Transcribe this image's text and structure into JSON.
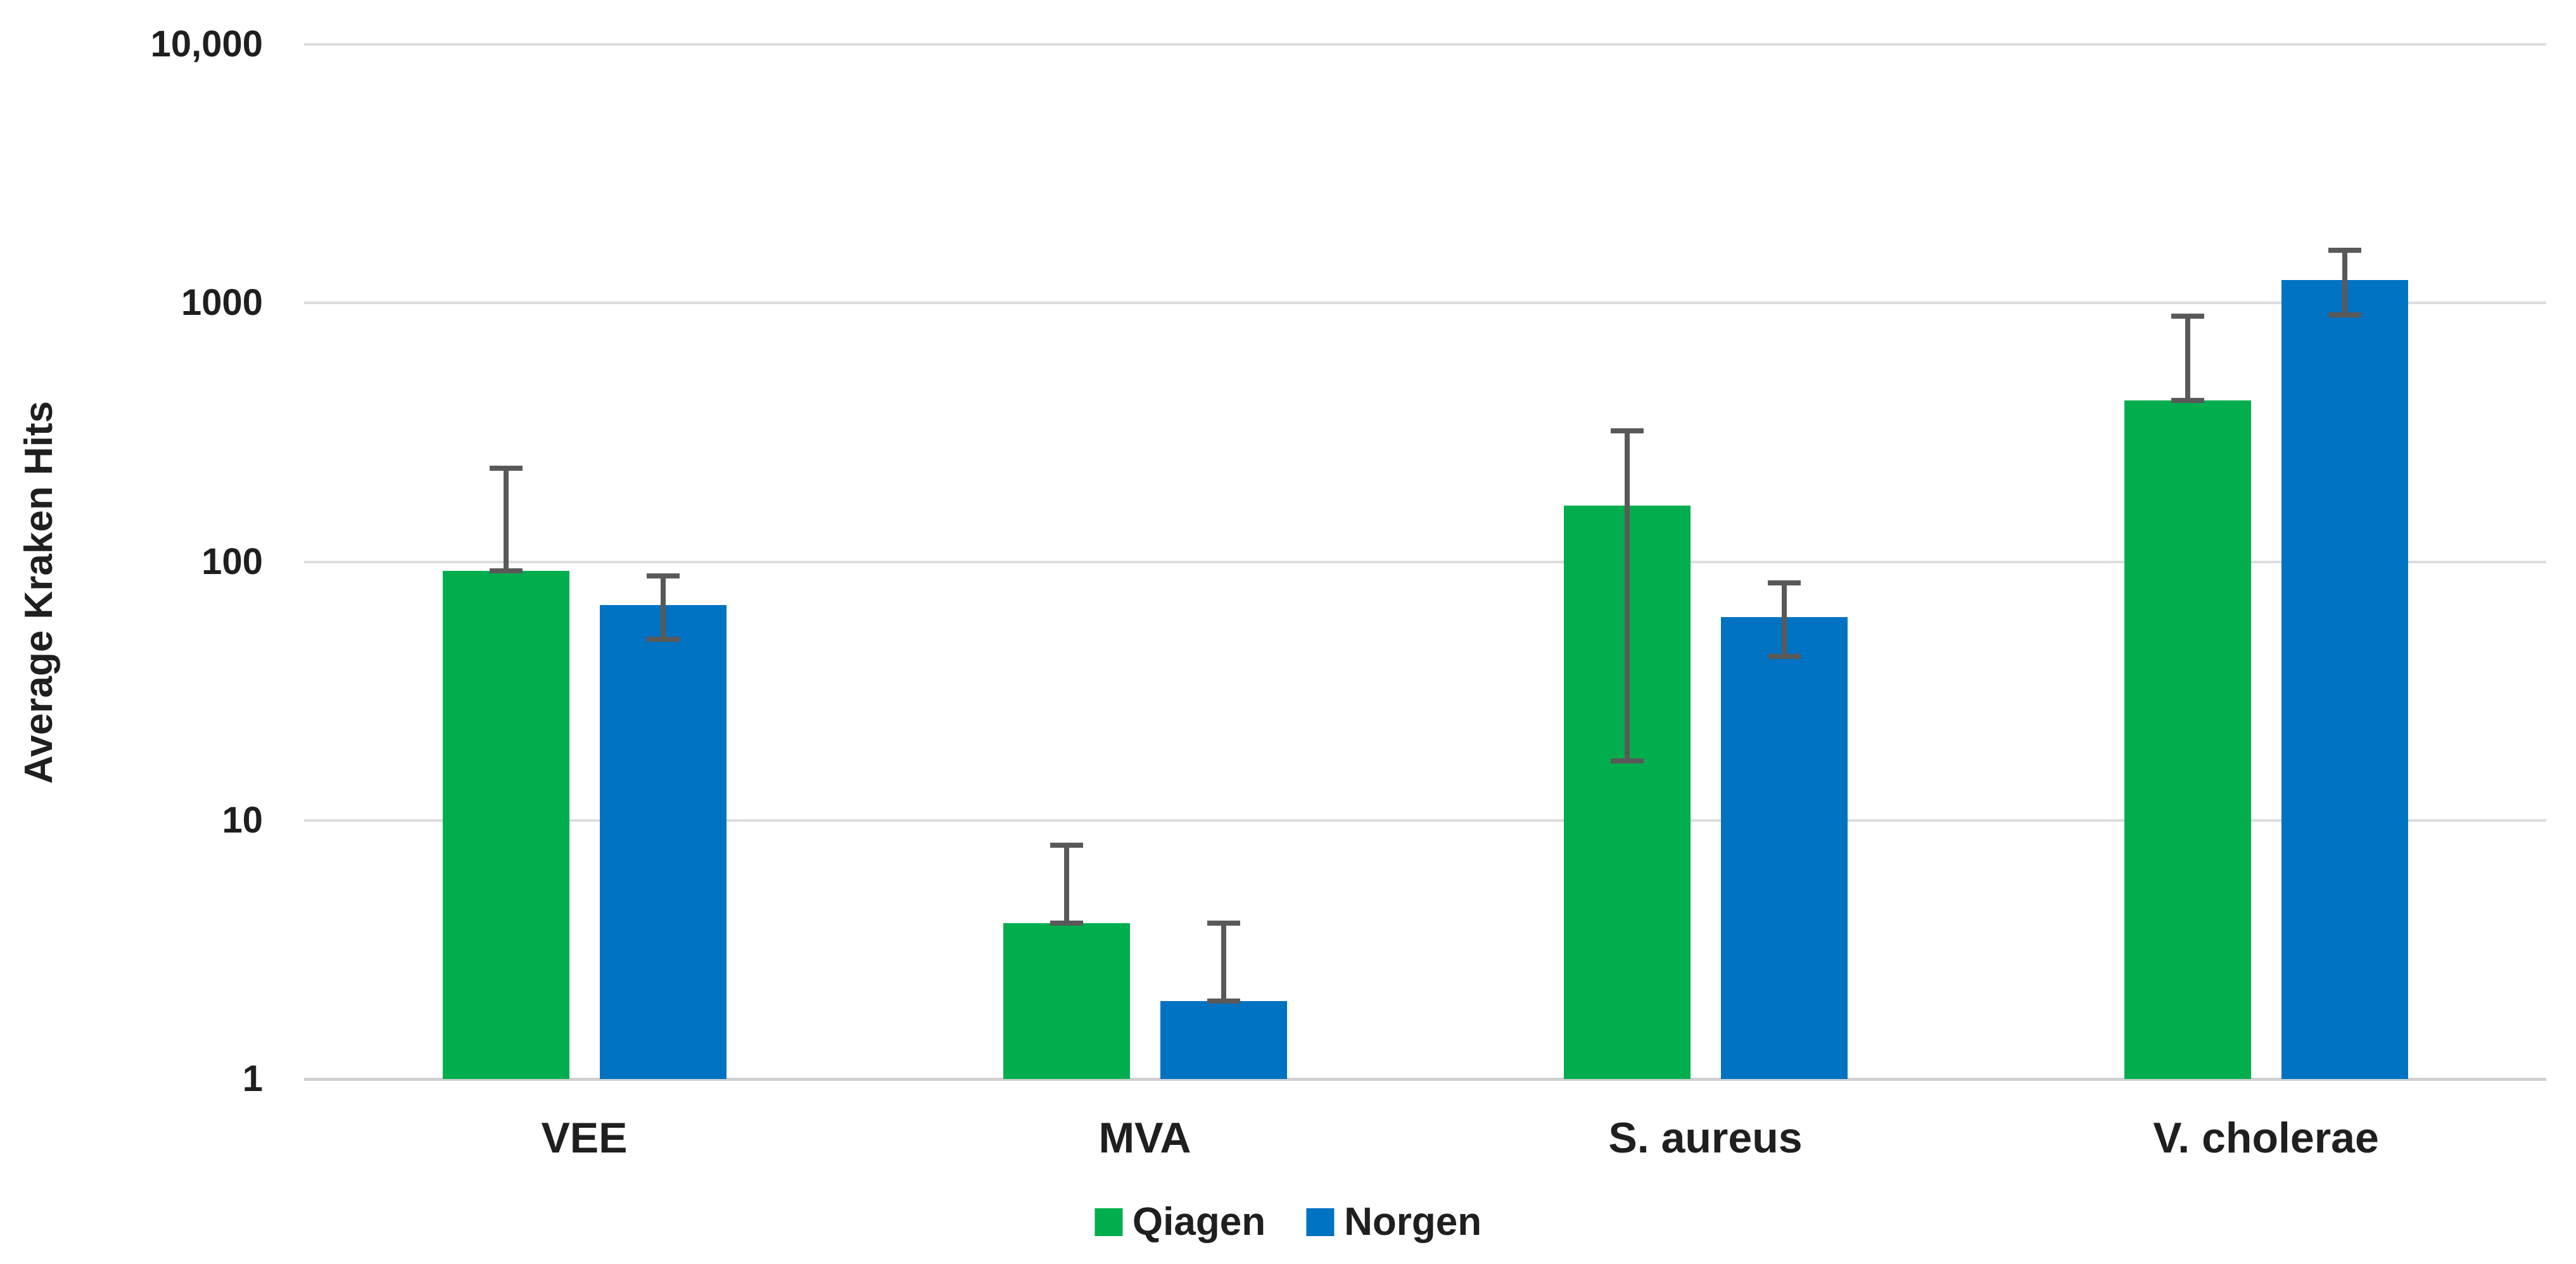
{
  "chart_data": {
    "type": "bar",
    "scale": "log10",
    "title": "",
    "xlabel": "",
    "ylabel": "Average Kraken Hits",
    "ylim": [
      1,
      10000
    ],
    "grid": true,
    "legend_position": "bottom-center",
    "categories": [
      "VEE",
      "MVA",
      "S. aureus",
      "V. cholerae"
    ],
    "y_ticks": [
      {
        "label": "10,000",
        "value": 10000
      },
      {
        "label": "1000",
        "value": 1000
      },
      {
        "label": "100",
        "value": 100
      },
      {
        "label": "10",
        "value": 10
      },
      {
        "label": "1",
        "value": 1
      }
    ],
    "series": [
      {
        "name": "Qiagen",
        "color": "#00AE4E",
        "values": [
          92,
          4,
          165,
          420
        ],
        "error_low": [
          92,
          4,
          17,
          420
        ],
        "error_high": [
          230,
          8,
          320,
          890
        ]
      },
      {
        "name": "Norgen",
        "color": "#0072C2",
        "values": [
          68,
          2,
          61,
          1230
        ],
        "error_low": [
          50,
          2,
          43,
          900
        ],
        "error_high": [
          88,
          4,
          83,
          1600
        ]
      }
    ],
    "colors": {
      "error_bar": "#595959",
      "gridline": "#dcdcdc",
      "axis_line": "#d0d0d0",
      "text": "#1f1f1f",
      "background": "#ffffff"
    }
  }
}
